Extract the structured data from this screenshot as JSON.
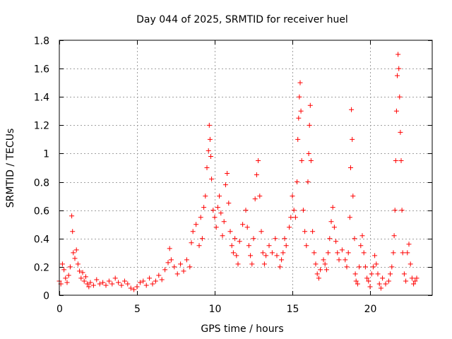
{
  "chart_data": {
    "type": "scatter",
    "title": "Day 044 of 2025, SRMTID for receiver huel",
    "xlabel": "GPS time / hours",
    "ylabel": "SRMTID / TECUs",
    "xlim": [
      0,
      24
    ],
    "ylim": [
      0,
      1.8
    ],
    "xticks": [
      0,
      5,
      10,
      15,
      20
    ],
    "xtick_labels": [
      "0",
      "5",
      "10",
      "15",
      "20"
    ],
    "yticks": [
      0,
      0.2,
      0.4,
      0.6,
      0.8,
      1.0,
      1.2,
      1.4,
      1.6,
      1.8
    ],
    "ytick_labels": [
      "0",
      "0.2",
      "0.4",
      "0.6",
      "0.8",
      "1",
      "1.2",
      "1.4",
      "1.6",
      "1.8"
    ],
    "grid": true,
    "marker": "+",
    "color": "#ff0000",
    "series": [
      {
        "name": "SRMTID",
        "points": [
          [
            0.0,
            0.1
          ],
          [
            0.1,
            0.08
          ],
          [
            0.2,
            0.22
          ],
          [
            0.3,
            0.18
          ],
          [
            0.4,
            0.12
          ],
          [
            0.5,
            0.09
          ],
          [
            0.6,
            0.14
          ],
          [
            0.7,
            0.2
          ],
          [
            0.8,
            0.56
          ],
          [
            0.85,
            0.45
          ],
          [
            0.9,
            0.3
          ],
          [
            1.0,
            0.26
          ],
          [
            1.1,
            0.32
          ],
          [
            1.2,
            0.22
          ],
          [
            1.3,
            0.17
          ],
          [
            1.4,
            0.12
          ],
          [
            1.5,
            0.16
          ],
          [
            1.6,
            0.1
          ],
          [
            1.7,
            0.13
          ],
          [
            1.8,
            0.08
          ],
          [
            1.9,
            0.06
          ],
          [
            2.0,
            0.09
          ],
          [
            2.2,
            0.07
          ],
          [
            2.4,
            0.11
          ],
          [
            2.6,
            0.08
          ],
          [
            2.8,
            0.09
          ],
          [
            3.0,
            0.07
          ],
          [
            3.2,
            0.1
          ],
          [
            3.4,
            0.08
          ],
          [
            3.6,
            0.12
          ],
          [
            3.8,
            0.09
          ],
          [
            4.0,
            0.07
          ],
          [
            4.2,
            0.1
          ],
          [
            4.4,
            0.08
          ],
          [
            4.6,
            0.05
          ],
          [
            4.8,
            0.04
          ],
          [
            5.0,
            0.06
          ],
          [
            5.2,
            0.09
          ],
          [
            5.4,
            0.1
          ],
          [
            5.6,
            0.07
          ],
          [
            5.8,
            0.12
          ],
          [
            6.0,
            0.08
          ],
          [
            6.2,
            0.1
          ],
          [
            6.4,
            0.14
          ],
          [
            6.6,
            0.11
          ],
          [
            6.8,
            0.18
          ],
          [
            7.0,
            0.23
          ],
          [
            7.1,
            0.33
          ],
          [
            7.2,
            0.25
          ],
          [
            7.4,
            0.2
          ],
          [
            7.6,
            0.15
          ],
          [
            7.8,
            0.22
          ],
          [
            8.0,
            0.17
          ],
          [
            8.2,
            0.25
          ],
          [
            8.4,
            0.2
          ],
          [
            8.5,
            0.37
          ],
          [
            8.6,
            0.45
          ],
          [
            8.8,
            0.5
          ],
          [
            9.0,
            0.35
          ],
          [
            9.1,
            0.55
          ],
          [
            9.2,
            0.4
          ],
          [
            9.3,
            0.62
          ],
          [
            9.4,
            0.7
          ],
          [
            9.5,
            0.9
          ],
          [
            9.6,
            1.02
          ],
          [
            9.65,
            1.2
          ],
          [
            9.7,
            1.1
          ],
          [
            9.75,
            0.98
          ],
          [
            9.8,
            0.82
          ],
          [
            9.9,
            0.6
          ],
          [
            10.0,
            0.55
          ],
          [
            10.1,
            0.48
          ],
          [
            10.2,
            0.62
          ],
          [
            10.3,
            0.7
          ],
          [
            10.4,
            0.58
          ],
          [
            10.5,
            0.42
          ],
          [
            10.6,
            0.52
          ],
          [
            10.7,
            0.78
          ],
          [
            10.8,
            0.86
          ],
          [
            10.9,
            0.65
          ],
          [
            11.0,
            0.45
          ],
          [
            11.1,
            0.35
          ],
          [
            11.2,
            0.3
          ],
          [
            11.3,
            0.4
          ],
          [
            11.4,
            0.28
          ],
          [
            11.5,
            0.22
          ],
          [
            11.6,
            0.38
          ],
          [
            11.8,
            0.5
          ],
          [
            12.0,
            0.6
          ],
          [
            12.1,
            0.48
          ],
          [
            12.2,
            0.35
          ],
          [
            12.3,
            0.28
          ],
          [
            12.4,
            0.22
          ],
          [
            12.5,
            0.4
          ],
          [
            12.6,
            0.68
          ],
          [
            12.7,
            0.85
          ],
          [
            12.8,
            0.95
          ],
          [
            12.9,
            0.7
          ],
          [
            13.0,
            0.45
          ],
          [
            13.1,
            0.3
          ],
          [
            13.2,
            0.22
          ],
          [
            13.3,
            0.28
          ],
          [
            13.5,
            0.35
          ],
          [
            13.7,
            0.3
          ],
          [
            13.9,
            0.4
          ],
          [
            14.0,
            0.28
          ],
          [
            14.2,
            0.2
          ],
          [
            14.3,
            0.25
          ],
          [
            14.4,
            0.3
          ],
          [
            14.5,
            0.4
          ],
          [
            14.6,
            0.35
          ],
          [
            14.8,
            0.48
          ],
          [
            14.9,
            0.55
          ],
          [
            15.0,
            0.7
          ],
          [
            15.1,
            0.6
          ],
          [
            15.2,
            0.55
          ],
          [
            15.3,
            0.8
          ],
          [
            15.35,
            1.1
          ],
          [
            15.4,
            1.25
          ],
          [
            15.45,
            1.4
          ],
          [
            15.5,
            1.5
          ],
          [
            15.55,
            1.3
          ],
          [
            15.6,
            0.95
          ],
          [
            15.7,
            0.6
          ],
          [
            15.8,
            0.45
          ],
          [
            15.9,
            0.35
          ],
          [
            16.0,
            0.8
          ],
          [
            16.05,
            1.0
          ],
          [
            16.1,
            1.2
          ],
          [
            16.15,
            1.34
          ],
          [
            16.2,
            0.95
          ],
          [
            16.3,
            0.45
          ],
          [
            16.4,
            0.3
          ],
          [
            16.5,
            0.22
          ],
          [
            16.6,
            0.15
          ],
          [
            16.7,
            0.12
          ],
          [
            16.8,
            0.18
          ],
          [
            17.0,
            0.25
          ],
          [
            17.1,
            0.22
          ],
          [
            17.2,
            0.18
          ],
          [
            17.3,
            0.3
          ],
          [
            17.4,
            0.4
          ],
          [
            17.5,
            0.52
          ],
          [
            17.6,
            0.62
          ],
          [
            17.7,
            0.48
          ],
          [
            17.8,
            0.38
          ],
          [
            17.9,
            0.3
          ],
          [
            18.0,
            0.25
          ],
          [
            18.2,
            0.32
          ],
          [
            18.4,
            0.25
          ],
          [
            18.5,
            0.2
          ],
          [
            18.6,
            0.3
          ],
          [
            18.7,
            0.55
          ],
          [
            18.75,
            0.9
          ],
          [
            18.8,
            1.31
          ],
          [
            18.85,
            1.1
          ],
          [
            18.9,
            0.7
          ],
          [
            19.0,
            0.4
          ],
          [
            19.05,
            0.15
          ],
          [
            19.1,
            0.1
          ],
          [
            19.2,
            0.08
          ],
          [
            19.3,
            0.2
          ],
          [
            19.4,
            0.35
          ],
          [
            19.5,
            0.42
          ],
          [
            19.6,
            0.3
          ],
          [
            19.7,
            0.2
          ],
          [
            19.8,
            0.12
          ],
          [
            19.9,
            0.1
          ],
          [
            20.0,
            0.06
          ],
          [
            20.1,
            0.15
          ],
          [
            20.2,
            0.2
          ],
          [
            20.3,
            0.28
          ],
          [
            20.4,
            0.22
          ],
          [
            20.5,
            0.15
          ],
          [
            20.6,
            0.08
          ],
          [
            20.7,
            0.05
          ],
          [
            20.8,
            0.12
          ],
          [
            21.0,
            0.08
          ],
          [
            21.2,
            0.1
          ],
          [
            21.3,
            0.15
          ],
          [
            21.4,
            0.2
          ],
          [
            21.5,
            0.3
          ],
          [
            21.55,
            0.42
          ],
          [
            21.6,
            0.6
          ],
          [
            21.65,
            0.95
          ],
          [
            21.7,
            1.3
          ],
          [
            21.75,
            1.55
          ],
          [
            21.8,
            1.7
          ],
          [
            21.85,
            1.6
          ],
          [
            21.9,
            1.4
          ],
          [
            21.95,
            1.15
          ],
          [
            22.0,
            0.95
          ],
          [
            22.05,
            0.6
          ],
          [
            22.1,
            0.3
          ],
          [
            22.2,
            0.15
          ],
          [
            22.3,
            0.1
          ],
          [
            22.4,
            0.3
          ],
          [
            22.5,
            0.36
          ],
          [
            22.6,
            0.22
          ],
          [
            22.7,
            0.12
          ],
          [
            22.8,
            0.08
          ],
          [
            22.9,
            0.1
          ],
          [
            23.0,
            0.12
          ]
        ]
      }
    ]
  }
}
